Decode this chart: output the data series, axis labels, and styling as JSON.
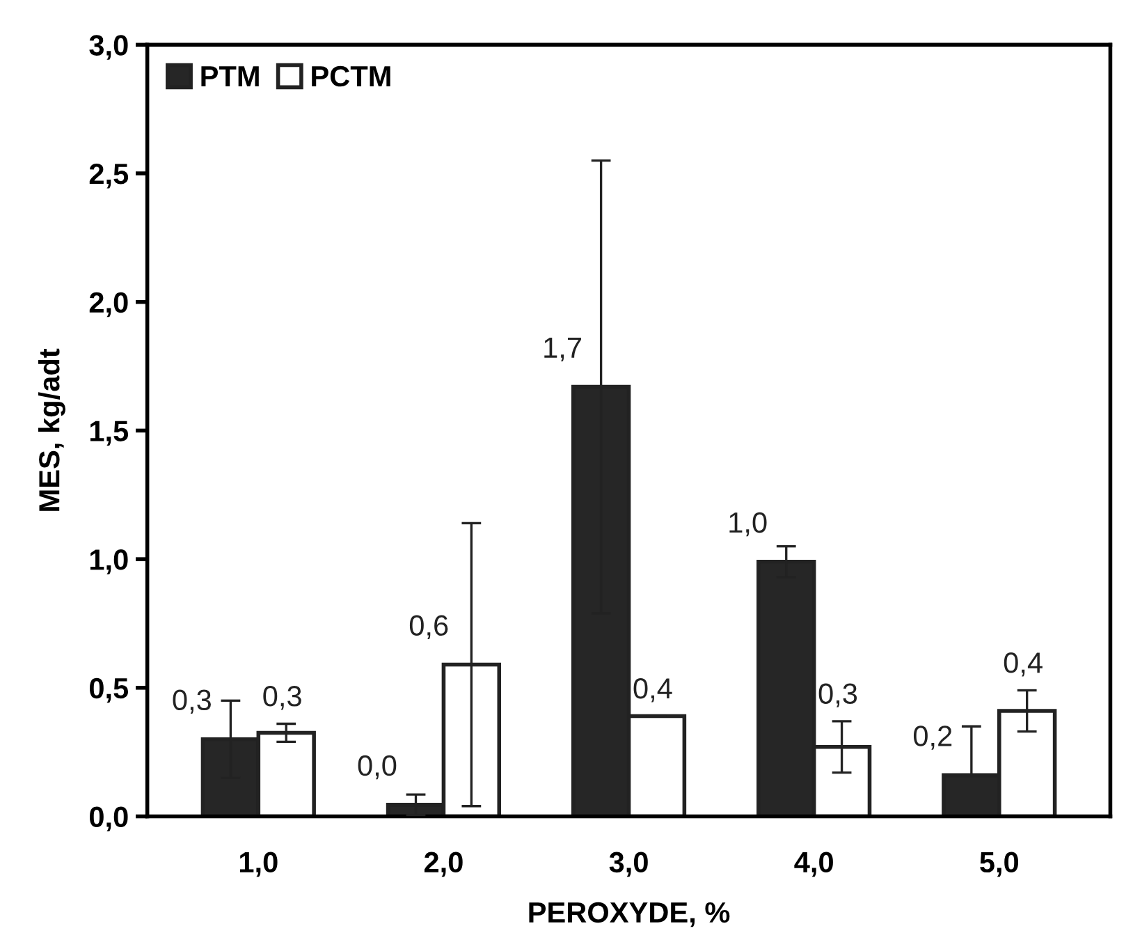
{
  "chart_data": {
    "type": "bar",
    "xlabel": "PEROXYDE, %",
    "ylabel": "MES, kg/adt",
    "categories": [
      "1,0",
      "2,0",
      "3,0",
      "4,0",
      "5,0"
    ],
    "series": [
      {
        "name": "PTM",
        "color": "#262626",
        "values": [
          0.3,
          0.045,
          1.67,
          0.99,
          0.16
        ],
        "errors": [
          0.15,
          0.04,
          0.88,
          0.06,
          [
            0.16,
            0.35
          ]
        ],
        "value_labels": [
          "0,3",
          "0,0",
          "1,7",
          "1,0",
          "0,2"
        ]
      },
      {
        "name": "PCTM",
        "color": "#ffffff",
        "values": [
          0.325,
          0.59,
          0.39,
          0.27,
          0.41
        ],
        "errors": [
          0.035,
          0.55,
          0.0,
          0.1,
          0.08
        ],
        "value_labels": [
          "0,3",
          "0,6",
          "0,4",
          "0,3",
          "0,4"
        ]
      }
    ],
    "ylim": [
      0,
      3.0
    ],
    "yticks": [
      {
        "value": 0,
        "label": "0,0"
      },
      {
        "value": 0.5,
        "label": "0,5"
      },
      {
        "value": 1.0,
        "label": "1,0"
      },
      {
        "value": 1.5,
        "label": "1,5"
      },
      {
        "value": 2.0,
        "label": "2,0"
      },
      {
        "value": 2.5,
        "label": "2,5"
      },
      {
        "value": 3.0,
        "label": "3,0"
      }
    ],
    "legend": "top left",
    "grid": false
  }
}
